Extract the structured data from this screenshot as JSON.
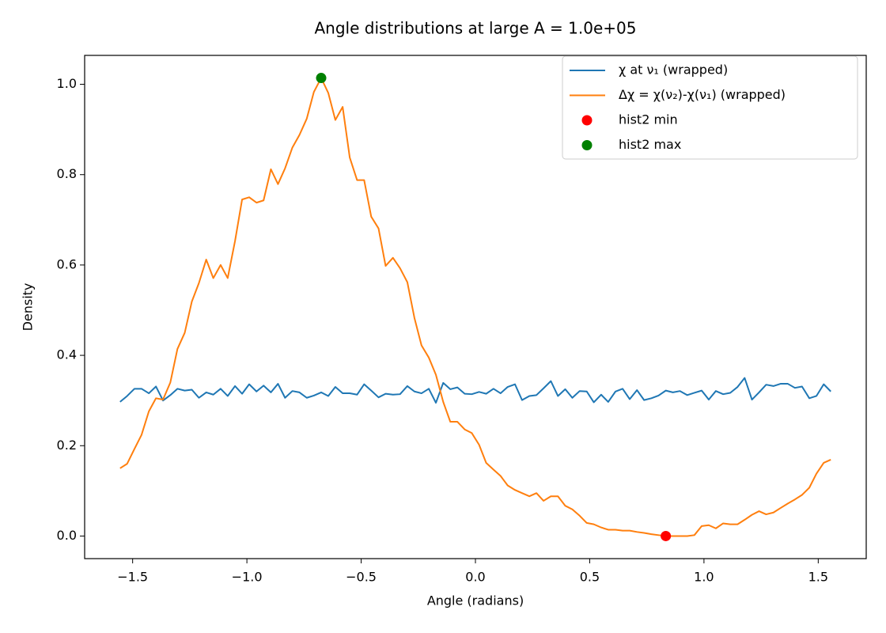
{
  "chart_data": {
    "type": "line",
    "title": "Angle distributions at large A = 1.0e+05",
    "xlabel": "Angle (radians)",
    "ylabel": "Density",
    "legend": "upper right",
    "grid": false,
    "xlim": [
      -1.71,
      1.71
    ],
    "ylim": [
      -0.05,
      1.064
    ],
    "xticks": [
      {
        "value": -1.5,
        "label": "−1.5"
      },
      {
        "value": -1.0,
        "label": "−1.0"
      },
      {
        "value": -0.5,
        "label": "−0.5"
      },
      {
        "value": 0,
        "label": "0.0"
      },
      0.5,
      {
        "value": 1,
        "label": "1.0"
      },
      1.5
    ],
    "yticks": [
      {
        "value": 0,
        "label": "0.0"
      },
      0.2,
      0.4,
      0.6,
      0.8,
      {
        "value": 1,
        "label": "1.0"
      }
    ],
    "x": [
      -1.555,
      -1.524,
      -1.492,
      -1.461,
      -1.429,
      -1.398,
      -1.367,
      -1.335,
      -1.304,
      -1.272,
      -1.241,
      -1.21,
      -1.178,
      -1.147,
      -1.115,
      -1.084,
      -1.052,
      -1.021,
      -0.99,
      -0.958,
      -0.927,
      -0.895,
      -0.864,
      -0.833,
      -0.801,
      -0.77,
      -0.738,
      -0.707,
      -0.675,
      -0.644,
      -0.613,
      -0.581,
      -0.55,
      -0.518,
      -0.487,
      -0.456,
      -0.424,
      -0.393,
      -0.361,
      -0.33,
      -0.298,
      -0.267,
      -0.236,
      -0.204,
      -0.173,
      -0.141,
      -0.11,
      -0.079,
      -0.047,
      -0.016,
      0.016,
      0.047,
      0.079,
      0.11,
      0.141,
      0.173,
      0.204,
      0.236,
      0.267,
      0.298,
      0.33,
      0.361,
      0.393,
      0.424,
      0.456,
      0.487,
      0.518,
      0.55,
      0.581,
      0.613,
      0.644,
      0.675,
      0.707,
      0.738,
      0.77,
      0.801,
      0.833,
      0.864,
      0.895,
      0.927,
      0.958,
      0.99,
      1.021,
      1.052,
      1.084,
      1.115,
      1.147,
      1.178,
      1.21,
      1.241,
      1.272,
      1.304,
      1.335,
      1.367,
      1.398,
      1.429,
      1.461,
      1.492,
      1.524,
      1.555
    ],
    "series": [
      {
        "name": "χ at ν₁ (wrapped)",
        "color": "#1f77b4",
        "values": [
          0.297,
          0.31,
          0.326,
          0.326,
          0.316,
          0.331,
          0.3,
          0.312,
          0.326,
          0.322,
          0.324,
          0.306,
          0.318,
          0.313,
          0.326,
          0.31,
          0.332,
          0.315,
          0.336,
          0.32,
          0.333,
          0.318,
          0.337,
          0.306,
          0.321,
          0.318,
          0.306,
          0.311,
          0.318,
          0.31,
          0.33,
          0.316,
          0.316,
          0.313,
          0.336,
          0.322,
          0.307,
          0.315,
          0.313,
          0.314,
          0.332,
          0.32,
          0.316,
          0.326,
          0.295,
          0.339,
          0.325,
          0.329,
          0.315,
          0.314,
          0.319,
          0.315,
          0.326,
          0.316,
          0.33,
          0.336,
          0.301,
          0.31,
          0.312,
          0.327,
          0.343,
          0.31,
          0.325,
          0.306,
          0.321,
          0.32,
          0.296,
          0.313,
          0.297,
          0.32,
          0.326,
          0.303,
          0.323,
          0.301,
          0.305,
          0.311,
          0.322,
          0.318,
          0.321,
          0.312,
          0.317,
          0.322,
          0.302,
          0.321,
          0.314,
          0.317,
          0.33,
          0.35,
          0.302,
          0.318,
          0.335,
          0.332,
          0.337,
          0.337,
          0.328,
          0.331,
          0.305,
          0.31,
          0.336,
          0.32
        ]
      },
      {
        "name": "Δχ = χ(ν₂)-χ(ν₁) (wrapped)",
        "color": "#ff7f0e",
        "values": [
          0.15,
          0.16,
          0.193,
          0.224,
          0.276,
          0.305,
          0.302,
          0.34,
          0.414,
          0.45,
          0.519,
          0.56,
          0.612,
          0.571,
          0.6,
          0.571,
          0.653,
          0.745,
          0.75,
          0.738,
          0.743,
          0.812,
          0.779,
          0.814,
          0.86,
          0.888,
          0.924,
          0.983,
          1.014,
          0.981,
          0.921,
          0.95,
          0.838,
          0.788,
          0.788,
          0.707,
          0.681,
          0.598,
          0.616,
          0.593,
          0.562,
          0.483,
          0.422,
          0.395,
          0.357,
          0.297,
          0.253,
          0.253,
          0.236,
          0.228,
          0.202,
          0.162,
          0.147,
          0.133,
          0.112,
          0.102,
          0.095,
          0.088,
          0.095,
          0.078,
          0.088,
          0.088,
          0.067,
          0.059,
          0.045,
          0.029,
          0.026,
          0.019,
          0.014,
          0.014,
          0.012,
          0.012,
          0.009,
          0.007,
          0.004,
          0.002,
          0,
          0,
          0,
          0,
          0.002,
          0.022,
          0.024,
          0.017,
          0.028,
          0.026,
          0.026,
          0.036,
          0.047,
          0.055,
          0.048,
          0.052,
          0.062,
          0.072,
          0.081,
          0.091,
          0.107,
          0.138,
          0.162,
          0.169
        ]
      },
      {
        "name": "hist2 min",
        "color": "#ff0000",
        "type": "scatter",
        "x": [
          0.833
        ],
        "values": [
          0
        ]
      },
      {
        "name": "hist2 max",
        "color": "#008000",
        "type": "scatter",
        "x": [
          -0.675
        ],
        "values": [
          1.014
        ]
      }
    ]
  }
}
